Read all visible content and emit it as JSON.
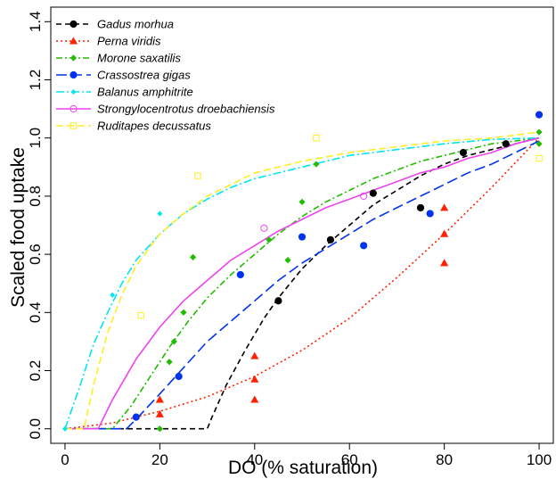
{
  "chart_data": {
    "type": "scatter",
    "xlabel": "DO (% saturation)",
    "ylabel": "Scaled food uptake",
    "xlim": [
      -3,
      103
    ],
    "ylim": [
      -0.05,
      1.45
    ],
    "xticks": [
      0,
      20,
      40,
      60,
      80,
      100
    ],
    "yticks": [
      0.0,
      0.2,
      0.4,
      0.6,
      0.8,
      1.0,
      1.2,
      1.4
    ],
    "xtick_labels": [
      "0",
      "20",
      "40",
      "60",
      "80",
      "100"
    ],
    "ytick_labels": [
      "0.0",
      "0.2",
      "0.4",
      "0.6",
      "0.8",
      "1.0",
      "1.2",
      "1.4"
    ],
    "legend_position": "top-left",
    "grid": false,
    "series": [
      {
        "name": "Gadus morhua",
        "color": "#000000",
        "marker": "circle-filled",
        "dash": "6,4",
        "points": [
          [
            45,
            0.44
          ],
          [
            56,
            0.65
          ],
          [
            65,
            0.81
          ],
          [
            75,
            0.76
          ],
          [
            84,
            0.95
          ],
          [
            93,
            0.98
          ]
        ],
        "curve": [
          [
            0,
            0.0
          ],
          [
            30,
            0.0
          ],
          [
            31,
            0.04
          ],
          [
            34,
            0.15
          ],
          [
            38,
            0.27
          ],
          [
            42,
            0.38
          ],
          [
            45,
            0.45
          ],
          [
            50,
            0.55
          ],
          [
            55,
            0.63
          ],
          [
            60,
            0.7
          ],
          [
            65,
            0.77
          ],
          [
            70,
            0.82
          ],
          [
            75,
            0.87
          ],
          [
            80,
            0.91
          ],
          [
            85,
            0.94
          ],
          [
            90,
            0.96
          ],
          [
            95,
            0.98
          ],
          [
            100,
            1.0
          ]
        ]
      },
      {
        "name": "Perna viridis",
        "color": "#ff2200",
        "marker": "triangle-filled",
        "dash": "2,3",
        "points": [
          [
            20,
            0.05
          ],
          [
            20,
            0.1
          ],
          [
            40,
            0.1
          ],
          [
            40,
            0.17
          ],
          [
            40,
            0.25
          ],
          [
            80,
            0.57
          ],
          [
            80,
            0.67
          ],
          [
            80,
            0.76
          ]
        ],
        "curve": [
          [
            0,
            0.0
          ],
          [
            10,
            0.02
          ],
          [
            20,
            0.06
          ],
          [
            30,
            0.11
          ],
          [
            40,
            0.18
          ],
          [
            50,
            0.27
          ],
          [
            60,
            0.38
          ],
          [
            70,
            0.52
          ],
          [
            80,
            0.67
          ],
          [
            90,
            0.83
          ],
          [
            100,
            1.0
          ]
        ]
      },
      {
        "name": "Morone saxatilis",
        "color": "#22bb00",
        "marker": "diamond-filled",
        "dash": "7,3,2,3",
        "points": [
          [
            20,
            0.0
          ],
          [
            22,
            0.23
          ],
          [
            23,
            0.3
          ],
          [
            25,
            0.4
          ],
          [
            27,
            0.59
          ],
          [
            43,
            0.65
          ],
          [
            47,
            0.58
          ],
          [
            50,
            0.78
          ],
          [
            53,
            0.91
          ],
          [
            100,
            0.98
          ],
          [
            100,
            1.02
          ]
        ],
        "curve": [
          [
            0,
            0.0
          ],
          [
            10,
            0.0
          ],
          [
            14,
            0.08
          ],
          [
            18,
            0.18
          ],
          [
            22,
            0.28
          ],
          [
            26,
            0.37
          ],
          [
            30,
            0.45
          ],
          [
            35,
            0.53
          ],
          [
            40,
            0.6
          ],
          [
            45,
            0.67
          ],
          [
            50,
            0.73
          ],
          [
            55,
            0.78
          ],
          [
            60,
            0.82
          ],
          [
            65,
            0.86
          ],
          [
            70,
            0.89
          ],
          [
            75,
            0.92
          ],
          [
            80,
            0.94
          ],
          [
            85,
            0.96
          ],
          [
            90,
            0.98
          ],
          [
            95,
            0.99
          ],
          [
            100,
            1.0
          ]
        ]
      },
      {
        "name": "Crassostrea gigas",
        "color": "#0033ee",
        "marker": "circle-filled",
        "dash": "12,5",
        "points": [
          [
            15,
            0.04
          ],
          [
            24,
            0.18
          ],
          [
            37,
            0.53
          ],
          [
            50,
            0.66
          ],
          [
            63,
            0.63
          ],
          [
            77,
            0.74
          ],
          [
            100,
            1.08
          ]
        ],
        "curve": [
          [
            0,
            0.0
          ],
          [
            13,
            0.0
          ],
          [
            16,
            0.05
          ],
          [
            20,
            0.12
          ],
          [
            25,
            0.21
          ],
          [
            30,
            0.3
          ],
          [
            35,
            0.37
          ],
          [
            40,
            0.44
          ],
          [
            45,
            0.51
          ],
          [
            50,
            0.57
          ],
          [
            55,
            0.62
          ],
          [
            60,
            0.67
          ],
          [
            65,
            0.72
          ],
          [
            70,
            0.76
          ],
          [
            75,
            0.8
          ],
          [
            80,
            0.84
          ],
          [
            85,
            0.88
          ],
          [
            90,
            0.91
          ],
          [
            95,
            0.95
          ],
          [
            100,
            0.99
          ]
        ]
      },
      {
        "name": "Balanus amphitrite",
        "color": "#00e5ee",
        "marker": "diamond-filled-small",
        "dash": "9,3,2,3",
        "points": [
          [
            0,
            0.0
          ],
          [
            10,
            0.46
          ],
          [
            20,
            0.74
          ]
        ],
        "curve": [
          [
            0,
            0.0
          ],
          [
            3,
            0.14
          ],
          [
            6,
            0.29
          ],
          [
            9,
            0.4
          ],
          [
            12,
            0.5
          ],
          [
            15,
            0.58
          ],
          [
            20,
            0.67
          ],
          [
            25,
            0.74
          ],
          [
            30,
            0.79
          ],
          [
            35,
            0.83
          ],
          [
            40,
            0.86
          ],
          [
            50,
            0.9
          ],
          [
            60,
            0.94
          ],
          [
            70,
            0.96
          ],
          [
            80,
            0.98
          ],
          [
            90,
            0.995
          ],
          [
            100,
            1.0
          ]
        ]
      },
      {
        "name": "Strongylocentrotus droebachiensis",
        "color": "#ee44ee",
        "marker": "circle-open",
        "dash": "",
        "points": [
          [
            42,
            0.69
          ],
          [
            63,
            0.8
          ]
        ],
        "curve": [
          [
            0,
            0.0
          ],
          [
            7,
            0.0
          ],
          [
            10,
            0.1
          ],
          [
            15,
            0.24
          ],
          [
            20,
            0.35
          ],
          [
            25,
            0.44
          ],
          [
            30,
            0.51
          ],
          [
            35,
            0.58
          ],
          [
            40,
            0.63
          ],
          [
            45,
            0.68
          ],
          [
            50,
            0.72
          ],
          [
            55,
            0.76
          ],
          [
            60,
            0.79
          ],
          [
            65,
            0.82
          ],
          [
            70,
            0.85
          ],
          [
            75,
            0.88
          ],
          [
            80,
            0.9
          ],
          [
            85,
            0.93
          ],
          [
            90,
            0.95
          ],
          [
            95,
            0.98
          ],
          [
            100,
            1.0
          ]
        ]
      },
      {
        "name": "Ruditapes decussatus",
        "color": "#ffee22",
        "marker": "square-open",
        "dash": "8,4",
        "points": [
          [
            16,
            0.39
          ],
          [
            28,
            0.87
          ],
          [
            53,
            1.0
          ],
          [
            100,
            0.93
          ]
        ],
        "curve": [
          [
            0,
            0.0
          ],
          [
            4,
            0.0
          ],
          [
            6,
            0.15
          ],
          [
            9,
            0.33
          ],
          [
            12,
            0.46
          ],
          [
            15,
            0.56
          ],
          [
            20,
            0.67
          ],
          [
            25,
            0.74
          ],
          [
            30,
            0.8
          ],
          [
            35,
            0.84
          ],
          [
            40,
            0.88
          ],
          [
            50,
            0.92
          ],
          [
            60,
            0.95
          ],
          [
            70,
            0.97
          ],
          [
            80,
            0.99
          ],
          [
            90,
            1.0
          ],
          [
            100,
            1.02
          ]
        ]
      }
    ]
  }
}
